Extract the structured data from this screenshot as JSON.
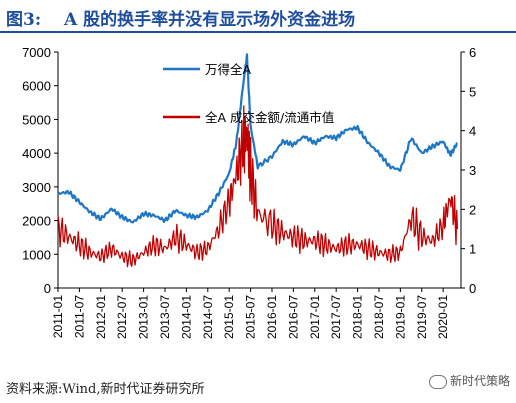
{
  "figure": {
    "label": "图3:",
    "title": "A 股的换手率并没有显示场外资金进场",
    "source": "资料来源:Wind,新时代证券研究所",
    "watermark": "新时代策略"
  },
  "colors": {
    "blue": "#1f77c4",
    "red": "#c00000",
    "title": "#1f4e9e",
    "axis": "#000000"
  },
  "chart_data": {
    "type": "line",
    "title": "",
    "x_tick_labels": [
      "2011-01",
      "2011-07",
      "2012-01",
      "2012-07",
      "2013-01",
      "2013-07",
      "2014-01",
      "2014-07",
      "2015-01",
      "2015-07",
      "2016-01",
      "2016-07",
      "2017-01",
      "2017-07",
      "2018-01",
      "2018-07",
      "2019-01",
      "2019-07",
      "2020-01"
    ],
    "y_left": {
      "min": 0,
      "max": 7000,
      "ticks": [
        0,
        1000,
        2000,
        3000,
        4000,
        5000,
        6000,
        7000
      ]
    },
    "y_right": {
      "min": 0,
      "max": 6,
      "ticks": [
        0,
        1,
        2,
        3,
        4,
        5,
        6
      ]
    },
    "legend_placement": "inside-top",
    "series": [
      {
        "name": "万得全A",
        "axis": "left",
        "color": "#1f77c4",
        "dates": [
          "2011-01",
          "2011-04",
          "2011-07",
          "2011-10",
          "2012-01",
          "2012-04",
          "2012-07",
          "2012-10",
          "2013-01",
          "2013-04",
          "2013-07",
          "2013-10",
          "2014-01",
          "2014-04",
          "2014-07",
          "2014-10",
          "2015-01",
          "2015-03",
          "2015-05",
          "2015-06",
          "2015-07",
          "2015-09",
          "2016-01",
          "2016-04",
          "2016-07",
          "2016-10",
          "2017-01",
          "2017-04",
          "2017-07",
          "2017-10",
          "2018-01",
          "2018-04",
          "2018-07",
          "2018-10",
          "2019-01",
          "2019-04",
          "2019-07",
          "2019-10",
          "2020-01",
          "2020-03",
          "2020-05"
        ],
        "values": [
          2800,
          2850,
          2550,
          2250,
          2050,
          2350,
          2100,
          1950,
          2200,
          2150,
          2000,
          2300,
          2150,
          2100,
          2300,
          2800,
          3400,
          4300,
          6100,
          6900,
          4800,
          3600,
          3900,
          4350,
          4250,
          4500,
          4300,
          4500,
          4450,
          4700,
          4750,
          4300,
          4000,
          3600,
          3500,
          4450,
          4000,
          4200,
          4350,
          3950,
          4300
        ]
      },
      {
        "name": "全A 成交金额/流通市值",
        "axis": "right",
        "color": "#c00000",
        "dates": [
          "2011-01",
          "2011-04",
          "2011-07",
          "2011-10",
          "2012-01",
          "2012-04",
          "2012-07",
          "2012-10",
          "2013-01",
          "2013-04",
          "2013-07",
          "2013-10",
          "2014-01",
          "2014-04",
          "2014-07",
          "2014-10",
          "2015-01",
          "2015-03",
          "2015-05",
          "2015-06",
          "2015-07",
          "2015-09",
          "2016-01",
          "2016-04",
          "2016-07",
          "2016-10",
          "2017-01",
          "2017-04",
          "2017-07",
          "2017-10",
          "2018-01",
          "2018-04",
          "2018-07",
          "2018-10",
          "2019-01",
          "2019-04",
          "2019-07",
          "2019-10",
          "2020-01",
          "2020-03",
          "2020-05"
        ],
        "values": [
          1.5,
          1.3,
          1.1,
          0.9,
          0.8,
          1.0,
          0.8,
          0.7,
          0.9,
          1.1,
          1.0,
          1.3,
          1.1,
          0.9,
          1.0,
          1.5,
          2.2,
          2.9,
          3.7,
          3.9,
          3.0,
          1.9,
          1.6,
          1.4,
          1.3,
          1.2,
          1.2,
          1.1,
          1.0,
          1.1,
          1.1,
          1.0,
          0.9,
          0.85,
          0.9,
          1.8,
          1.3,
          1.2,
          1.6,
          2.3,
          1.5
        ]
      }
    ]
  }
}
